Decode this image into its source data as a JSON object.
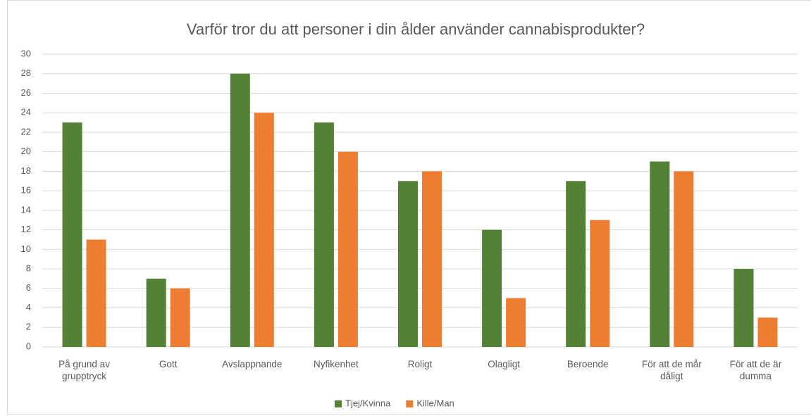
{
  "chart_data": {
    "type": "bar",
    "title": "Varför tror du att personer i din ålder använder cannabisprodukter?",
    "categories": [
      "På grund av grupptryck",
      "Gott",
      "Avslappnande",
      "Nyfikenhet",
      "Roligt",
      "Olagligt",
      "Beroende",
      "För att de mår dåligt",
      "För att de är dumma"
    ],
    "series": [
      {
        "name": "Tjej/Kvinna",
        "color": "#538135",
        "values": [
          23,
          7,
          28,
          23,
          17,
          12,
          17,
          19,
          8
        ]
      },
      {
        "name": "Kille/Man",
        "color": "#ed7d31",
        "values": [
          11,
          6,
          24,
          20,
          18,
          5,
          13,
          18,
          3
        ]
      }
    ],
    "ylim": [
      0,
      30
    ],
    "yticks": [
      0,
      2,
      4,
      6,
      8,
      10,
      12,
      14,
      16,
      18,
      20,
      22,
      24,
      26,
      28,
      30
    ],
    "grid": true,
    "legend": "bottom"
  }
}
